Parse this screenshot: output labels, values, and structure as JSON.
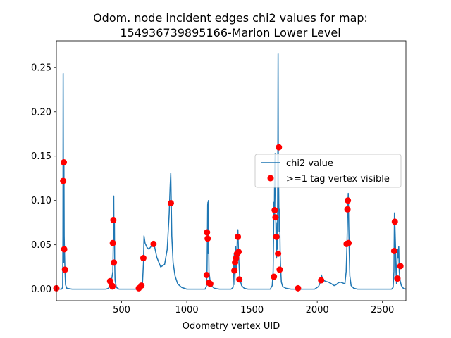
{
  "chart_data": {
    "type": "line",
    "title": "Odom. node incident edges chi2 values for map:\n154936739895166-Marion Lower Level",
    "xlabel": "Odometry vertex UID",
    "ylabel": "",
    "xlim": [
      0,
      2680
    ],
    "ylim": [
      -0.013,
      0.28
    ],
    "xticks": [
      500,
      1000,
      1500,
      2000,
      2500
    ],
    "yticks": [
      0.0,
      0.05,
      0.1,
      0.15,
      0.2,
      0.25
    ],
    "legend_position": "center-right",
    "series": [
      {
        "name": "chi2 value",
        "kind": "line",
        "color": "#1f77b4",
        "points": [
          [
            0,
            0.0
          ],
          [
            40,
            0.0
          ],
          [
            48,
            0.002
          ],
          [
            50,
            0.06
          ],
          [
            52,
            0.243
          ],
          [
            54,
            0.12
          ],
          [
            56,
            0.03
          ],
          [
            58,
            0.143
          ],
          [
            60,
            0.06
          ],
          [
            62,
            0.045
          ],
          [
            66,
            0.02
          ],
          [
            70,
            0.005
          ],
          [
            80,
            0.001
          ],
          [
            120,
            0.0
          ],
          [
            380,
            0.0
          ],
          [
            400,
            0.001
          ],
          [
            415,
            0.008
          ],
          [
            425,
            0.012
          ],
          [
            433,
            0.02
          ],
          [
            437,
            0.06
          ],
          [
            440,
            0.105
          ],
          [
            442,
            0.05
          ],
          [
            445,
            0.08
          ],
          [
            447,
            0.03
          ],
          [
            450,
            0.01
          ],
          [
            460,
            0.002
          ],
          [
            480,
            0.0
          ],
          [
            630,
            0.0
          ],
          [
            650,
            0.002
          ],
          [
            660,
            0.006
          ],
          [
            668,
            0.03
          ],
          [
            672,
            0.06
          ],
          [
            680,
            0.052
          ],
          [
            695,
            0.047
          ],
          [
            710,
            0.045
          ],
          [
            725,
            0.048
          ],
          [
            740,
            0.051
          ],
          [
            750,
            0.05
          ],
          [
            770,
            0.036
          ],
          [
            800,
            0.025
          ],
          [
            830,
            0.028
          ],
          [
            850,
            0.045
          ],
          [
            865,
            0.085
          ],
          [
            872,
            0.115
          ],
          [
            877,
            0.131
          ],
          [
            880,
            0.105
          ],
          [
            885,
            0.06
          ],
          [
            895,
            0.03
          ],
          [
            910,
            0.015
          ],
          [
            930,
            0.006
          ],
          [
            960,
            0.002
          ],
          [
            1000,
            0.0
          ],
          [
            1140,
            0.0
          ],
          [
            1150,
            0.003
          ],
          [
            1155,
            0.018
          ],
          [
            1158,
            0.06
          ],
          [
            1160,
            0.095
          ],
          [
            1162,
            0.098
          ],
          [
            1164,
            0.04
          ],
          [
            1166,
            0.1
          ],
          [
            1168,
            0.05
          ],
          [
            1170,
            0.02
          ],
          [
            1178,
            0.01
          ],
          [
            1185,
            0.007
          ],
          [
            1195,
            0.003
          ],
          [
            1210,
            0.001
          ],
          [
            1250,
            0.0
          ],
          [
            1340,
            0.0
          ],
          [
            1355,
            0.002
          ],
          [
            1360,
            0.025
          ],
          [
            1364,
            0.04
          ],
          [
            1368,
            0.005
          ],
          [
            1375,
            0.048
          ],
          [
            1380,
            0.02
          ],
          [
            1388,
            0.06
          ],
          [
            1392,
            0.067
          ],
          [
            1396,
            0.045
          ],
          [
            1400,
            0.03
          ],
          [
            1405,
            0.015
          ],
          [
            1410,
            0.01
          ],
          [
            1420,
            0.004
          ],
          [
            1440,
            0.001
          ],
          [
            1470,
            0.0
          ],
          [
            1640,
            0.0
          ],
          [
            1655,
            0.004
          ],
          [
            1662,
            0.02
          ],
          [
            1665,
            0.055
          ],
          [
            1668,
            0.098
          ],
          [
            1671,
            0.08
          ],
          [
            1674,
            0.14
          ],
          [
            1677,
            0.153
          ],
          [
            1680,
            0.11
          ],
          [
            1684,
            0.06
          ],
          [
            1688,
            0.035
          ],
          [
            1692,
            0.075
          ],
          [
            1695,
            0.045
          ],
          [
            1698,
            0.16
          ],
          [
            1700,
            0.266
          ],
          [
            1702,
            0.14
          ],
          [
            1705,
            0.11
          ],
          [
            1708,
            0.065
          ],
          [
            1712,
            0.09
          ],
          [
            1716,
            0.04
          ],
          [
            1720,
            0.022
          ],
          [
            1725,
            0.008
          ],
          [
            1735,
            0.003
          ],
          [
            1760,
            0.001
          ],
          [
            1800,
            0.0
          ],
          [
            1980,
            0.0
          ],
          [
            2010,
            0.003
          ],
          [
            2025,
            0.008
          ],
          [
            2032,
            0.016
          ],
          [
            2040,
            0.012
          ],
          [
            2060,
            0.009
          ],
          [
            2085,
            0.008
          ],
          [
            2110,
            0.006
          ],
          [
            2130,
            0.004
          ],
          [
            2145,
            0.005
          ],
          [
            2160,
            0.007
          ],
          [
            2175,
            0.008
          ],
          [
            2195,
            0.007
          ],
          [
            2212,
            0.006
          ],
          [
            2222,
            0.02
          ],
          [
            2228,
            0.05
          ],
          [
            2234,
            0.09
          ],
          [
            2238,
            0.108
          ],
          [
            2242,
            0.07
          ],
          [
            2246,
            0.04
          ],
          [
            2250,
            0.015
          ],
          [
            2260,
            0.004
          ],
          [
            2280,
            0.001
          ],
          [
            2310,
            0.0
          ],
          [
            2570,
            0.0
          ],
          [
            2582,
            0.002
          ],
          [
            2588,
            0.02
          ],
          [
            2592,
            0.086
          ],
          [
            2596,
            0.07
          ],
          [
            2600,
            0.05
          ],
          [
            2604,
            0.02
          ],
          [
            2608,
            0.006
          ],
          [
            2612,
            0.03
          ],
          [
            2616,
            0.045
          ],
          [
            2620,
            0.035
          ],
          [
            2625,
            0.048
          ],
          [
            2629,
            0.02
          ],
          [
            2635,
            0.01
          ],
          [
            2645,
            0.004
          ],
          [
            2660,
            0.001
          ],
          [
            2680,
            0.0
          ]
        ]
      },
      {
        "name": ">=1 tag vertex visible",
        "kind": "scatter",
        "color": "#ff0000",
        "points": [
          [
            0,
            0.001
          ],
          [
            52,
            0.122
          ],
          [
            57,
            0.143
          ],
          [
            60,
            0.045
          ],
          [
            66,
            0.022
          ],
          [
            412,
            0.009
          ],
          [
            426,
            0.004
          ],
          [
            430,
            0.003
          ],
          [
            433,
            0.052
          ],
          [
            437,
            0.078
          ],
          [
            441,
            0.03
          ],
          [
            632,
            0.001
          ],
          [
            652,
            0.004
          ],
          [
            667,
            0.035
          ],
          [
            745,
            0.051
          ],
          [
            878,
            0.097
          ],
          [
            1152,
            0.016
          ],
          [
            1155,
            0.064
          ],
          [
            1160,
            0.057
          ],
          [
            1170,
            0.007
          ],
          [
            1180,
            0.006
          ],
          [
            1365,
            0.021
          ],
          [
            1370,
            0.03
          ],
          [
            1378,
            0.035
          ],
          [
            1385,
            0.04
          ],
          [
            1392,
            0.059
          ],
          [
            1397,
            0.042
          ],
          [
            1403,
            0.011
          ],
          [
            1668,
            0.014
          ],
          [
            1674,
            0.089
          ],
          [
            1680,
            0.081
          ],
          [
            1687,
            0.059
          ],
          [
            1700,
            0.04
          ],
          [
            1706,
            0.16
          ],
          [
            1712,
            0.022
          ],
          [
            1853,
            0.001
          ],
          [
            2030,
            0.01
          ],
          [
            2225,
            0.051
          ],
          [
            2232,
            0.09
          ],
          [
            2235,
            0.1
          ],
          [
            2240,
            0.052
          ],
          [
            2590,
            0.043
          ],
          [
            2595,
            0.076
          ],
          [
            2615,
            0.012
          ],
          [
            2638,
            0.026
          ]
        ]
      }
    ]
  }
}
